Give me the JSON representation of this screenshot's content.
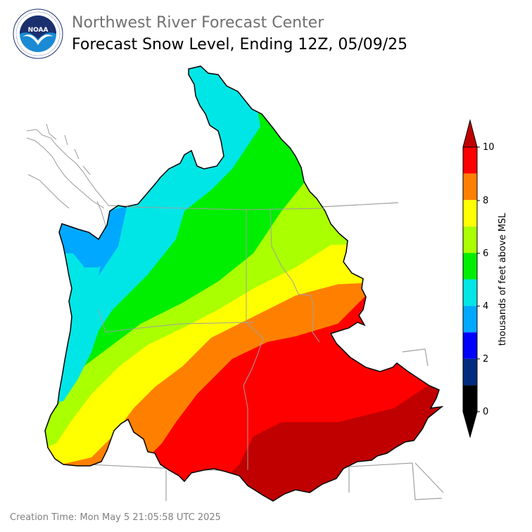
{
  "header": {
    "agency": "Northwest River Forecast Center",
    "product": "Forecast Snow Level, Ending 12Z, 05/09/25"
  },
  "logo": {
    "text": "NOAA",
    "ring_text": "NATIONAL OCEANIC AND ATMOSPHERIC ADMINISTRATION · U.S. DEPARTMENT OF COMMERCE",
    "colors": {
      "top": "#1b2f6e",
      "bottom": "#1a8ad4",
      "bird": "#ffffff"
    }
  },
  "colorbar": {
    "label": "thousands of feet above MSL",
    "ticks": [
      "0",
      "2",
      "4",
      "6",
      "8",
      "10"
    ],
    "bins": [
      {
        "from": 0,
        "to": 1,
        "color": "#000000"
      },
      {
        "from": 1,
        "to": 2,
        "color": "#002b80"
      },
      {
        "from": 2,
        "to": 3,
        "color": "#0000ff"
      },
      {
        "from": 3,
        "to": 4,
        "color": "#00a8ff"
      },
      {
        "from": 4,
        "to": 5,
        "color": "#00e6e6"
      },
      {
        "from": 5,
        "to": 6,
        "color": "#00ee00"
      },
      {
        "from": 6,
        "to": 7,
        "color": "#aaff00"
      },
      {
        "from": 7,
        "to": 8,
        "color": "#ffff00"
      },
      {
        "from": 8,
        "to": 9,
        "color": "#ff8000"
      },
      {
        "from": 9,
        "to": 10,
        "color": "#ff0000"
      }
    ],
    "under_color": "#000000",
    "over_color": "#c00000"
  },
  "map_legend_colors": {
    "lt4": "#00a8ff",
    "4to5": "#00e6e6",
    "5to6": "#00ee00",
    "6to7": "#aaff00",
    "7to8": "#ffff00",
    "8to9": "#ff8000",
    "9to10": "#ff0000",
    "gt10": "#c00000"
  },
  "footer": {
    "creation_time": "Creation Time: Mon May 5 21:05:58 UTC 2025"
  }
}
